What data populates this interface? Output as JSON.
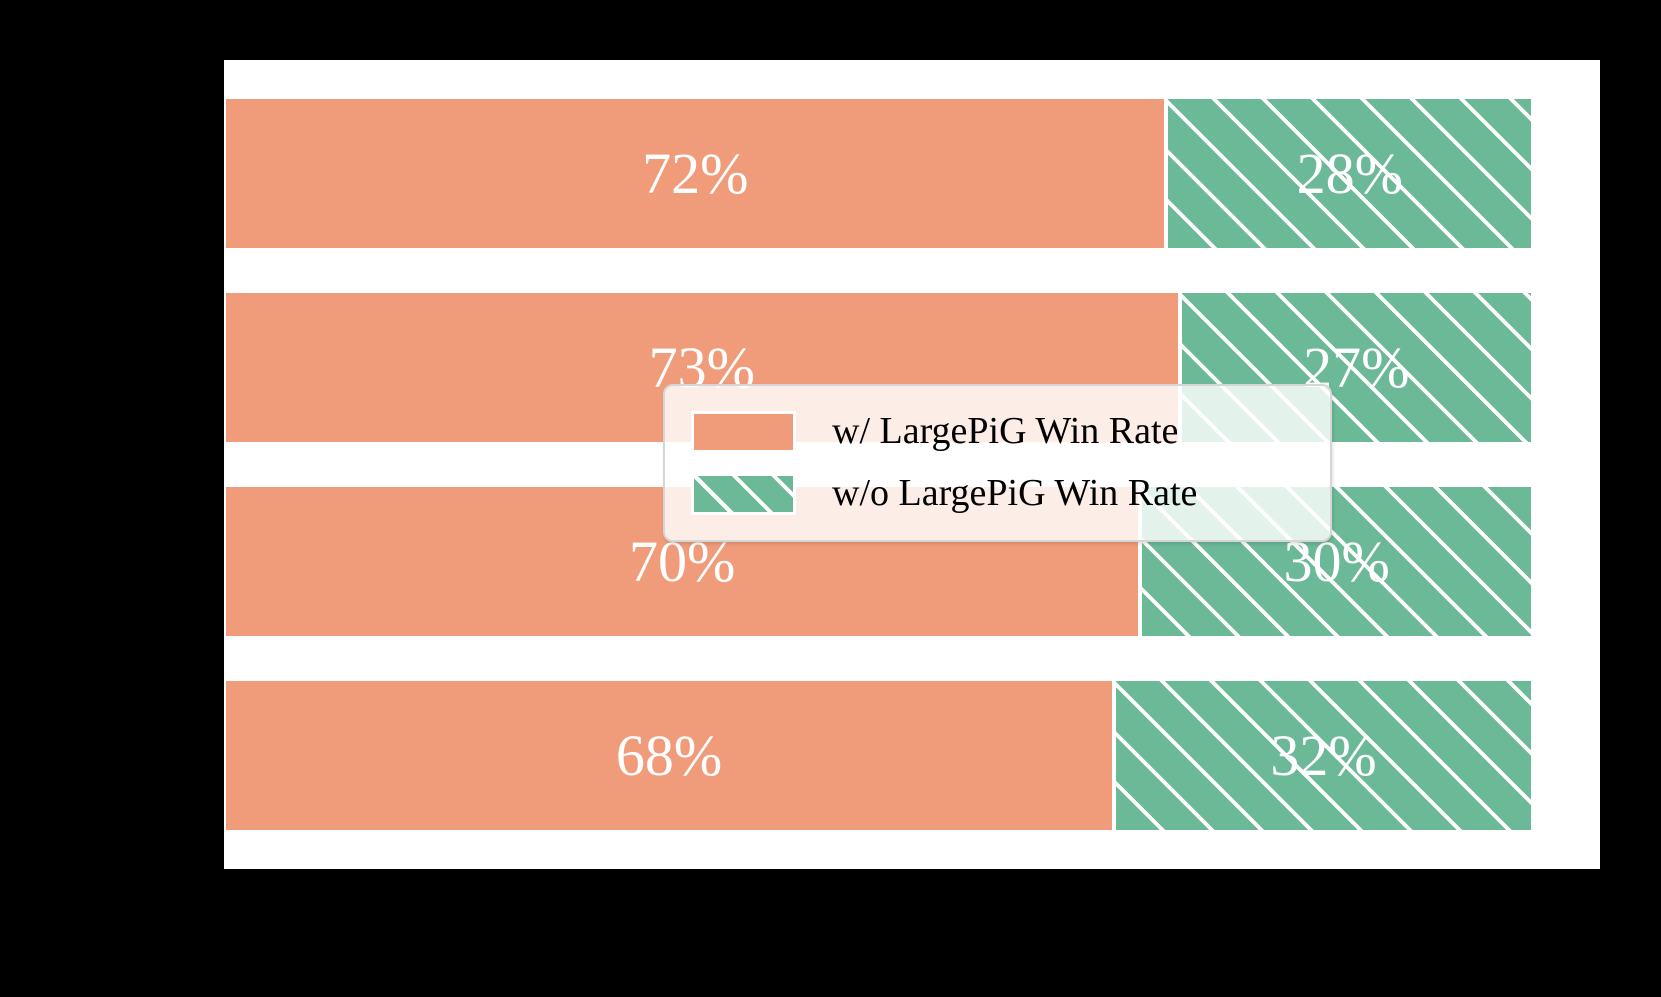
{
  "figure": {
    "page_background": "#000000",
    "plot_background": "#FFFFFF"
  },
  "colors": {
    "with_largepig": "#F09C7B",
    "without_largepig": "#6BB997",
    "bar_edge": "#FFFFFF",
    "bar_label_text": "#FFFFFF",
    "legend_text": "#000000",
    "legend_border": "#D6D6D6",
    "hatch_line": "#FFFFFF"
  },
  "chart_data": {
    "type": "bar",
    "orientation": "horizontal",
    "stacked": true,
    "title": "",
    "xlabel": "",
    "ylabel": "",
    "grid": false,
    "xlim": [
      0,
      105
    ],
    "categories": [
      "",
      "",
      "",
      ""
    ],
    "series": [
      {
        "name": "w/ LargePiG Win Rate",
        "values": [
          72,
          73,
          70,
          68
        ],
        "labels": [
          "72%",
          "73%",
          "70%",
          "68%"
        ],
        "color": "#F09C7B",
        "hatch": "none"
      },
      {
        "name": "w/o LargePiG Win Rate",
        "values": [
          28,
          27,
          30,
          32
        ],
        "labels": [
          "28%",
          "27%",
          "30%",
          "32%"
        ],
        "color": "#6BB997",
        "hatch": "white-diagonal"
      }
    ],
    "legend_position": "center",
    "bar_label_position": "segment-center"
  },
  "legend": {
    "items": [
      {
        "label": "w/ LargePiG Win Rate"
      },
      {
        "label": "w/o LargePiG Win Rate"
      }
    ]
  }
}
